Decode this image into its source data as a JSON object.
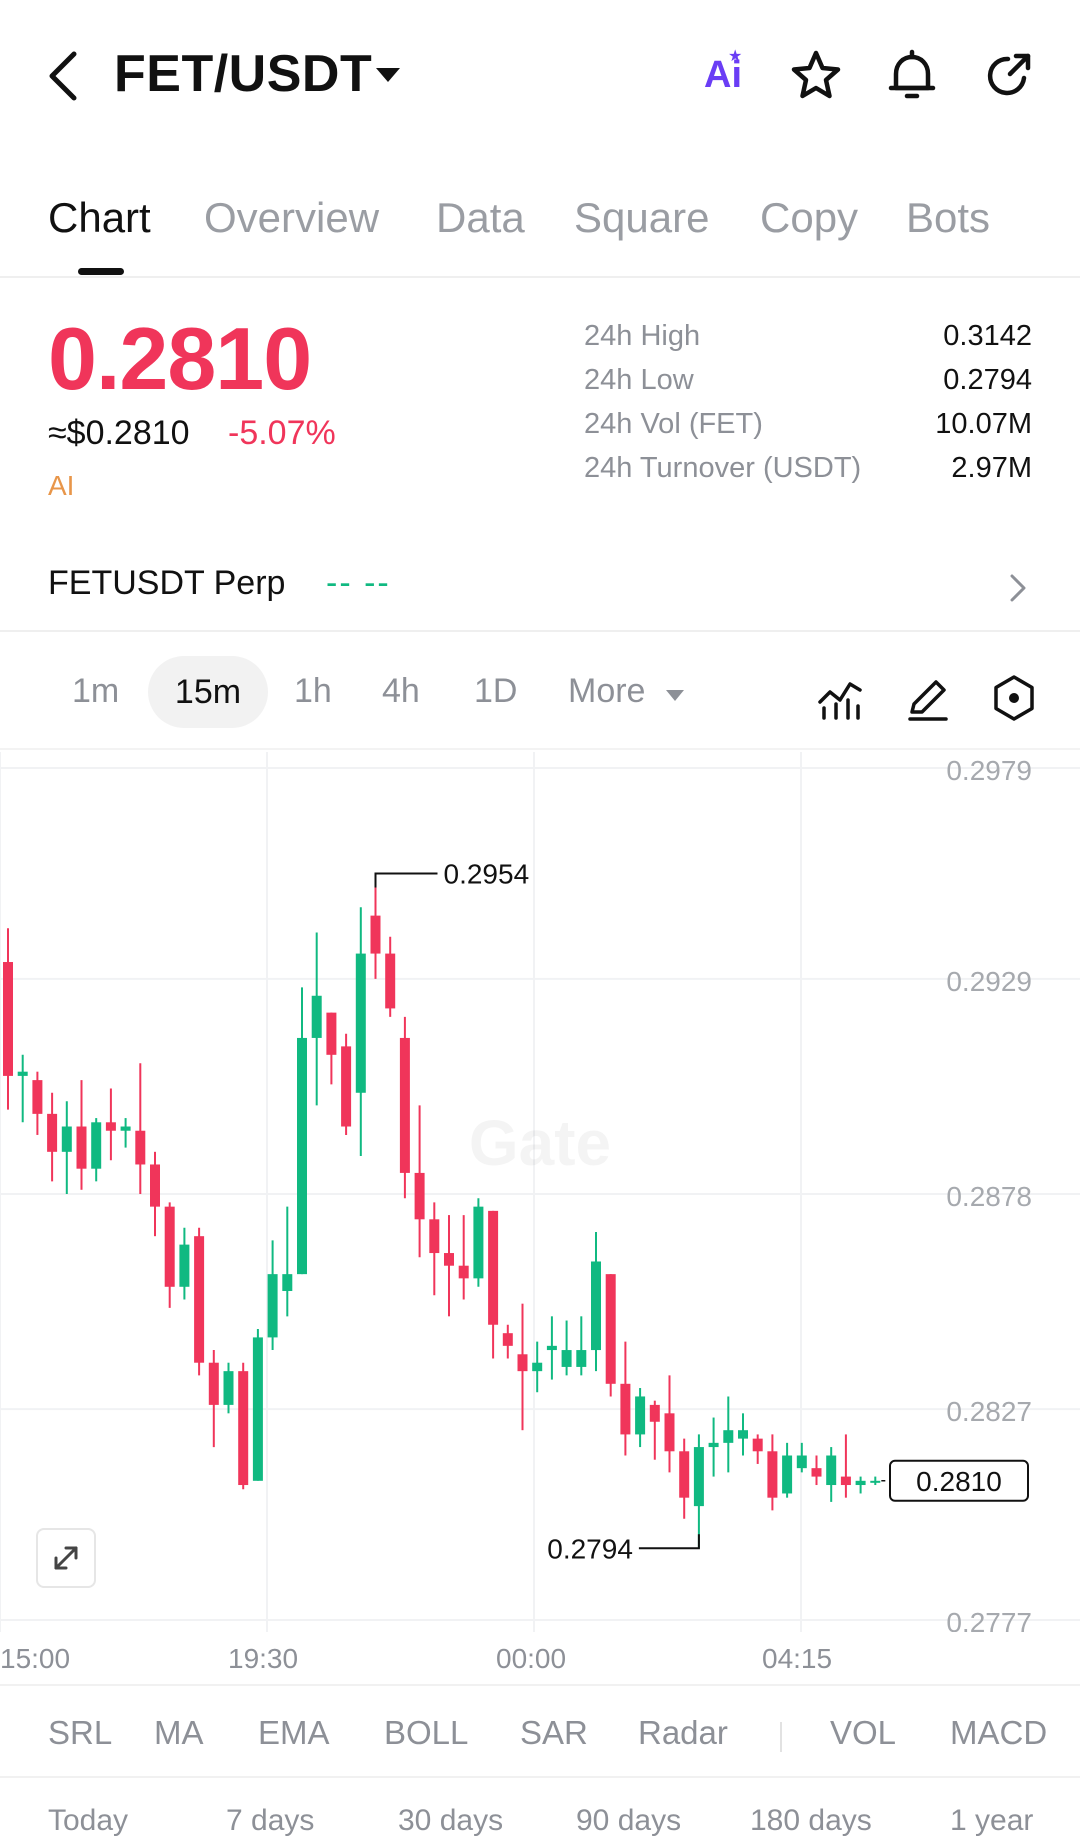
{
  "header": {
    "title": "FET/USDT",
    "ai_label": "Ai"
  },
  "tabs": [
    {
      "label": "Chart",
      "active": true
    },
    {
      "label": "Overview"
    },
    {
      "label": "Data"
    },
    {
      "label": "Square"
    },
    {
      "label": "Copy"
    },
    {
      "label": "Bots"
    }
  ],
  "ticker": {
    "price": "0.2810",
    "usd_price": "≈$0.2810",
    "change": "-5.07%",
    "ai_tag": "AI",
    "stats": [
      {
        "label": "24h  High",
        "value": "0.3142"
      },
      {
        "label": "24h  Low",
        "value": "0.2794"
      },
      {
        "label": "24h  Vol (FET)",
        "value": "10.07M"
      },
      {
        "label": "24h  Turnover (USDT)",
        "value": "2.97M"
      }
    ]
  },
  "perp": {
    "name": "FETUSDT Perp",
    "value": "--  --"
  },
  "intervals": [
    "1m",
    "15m",
    "1h",
    "4h",
    "1D",
    "More"
  ],
  "active_interval": "15m",
  "chart": {
    "y_ticks": [
      "0.2979",
      "0.2929",
      "0.2878",
      "0.2827",
      "0.2777"
    ],
    "x_ticks": [
      "15:00",
      "19:30",
      "00:00",
      "04:15"
    ],
    "high_label": "0.2954",
    "low_label": "0.2794",
    "last_price_label": "0.2810",
    "watermark": "Gate",
    "colors": {
      "up": "#10b981",
      "down": "#f0355a"
    }
  },
  "chart_data": {
    "type": "candlestick",
    "interval": "15m",
    "ylim": [
      0.2777,
      0.2979
    ],
    "y_ticks": [
      0.2979,
      0.2929,
      0.2878,
      0.2827,
      0.2777
    ],
    "x_ticks": [
      "15:00",
      "19:30",
      "00:00",
      "04:15"
    ],
    "high": 0.2954,
    "low": 0.2794,
    "last": 0.281,
    "candles": [
      {
        "o": 0.2933,
        "h": 0.2941,
        "l": 0.2898,
        "c": 0.2906
      },
      {
        "o": 0.2906,
        "h": 0.2911,
        "l": 0.2895,
        "c": 0.2907
      },
      {
        "o": 0.2905,
        "h": 0.2907,
        "l": 0.2892,
        "c": 0.2897
      },
      {
        "o": 0.2897,
        "h": 0.2902,
        "l": 0.2881,
        "c": 0.2888
      },
      {
        "o": 0.2888,
        "h": 0.29,
        "l": 0.2878,
        "c": 0.2894
      },
      {
        "o": 0.2894,
        "h": 0.2905,
        "l": 0.2879,
        "c": 0.2884
      },
      {
        "o": 0.2884,
        "h": 0.2896,
        "l": 0.2881,
        "c": 0.2895
      },
      {
        "o": 0.2895,
        "h": 0.2903,
        "l": 0.2886,
        "c": 0.2893
      },
      {
        "o": 0.2893,
        "h": 0.2896,
        "l": 0.2889,
        "c": 0.2894
      },
      {
        "o": 0.2893,
        "h": 0.2909,
        "l": 0.2878,
        "c": 0.2885
      },
      {
        "o": 0.2885,
        "h": 0.2888,
        "l": 0.2868,
        "c": 0.2875
      },
      {
        "o": 0.2875,
        "h": 0.2876,
        "l": 0.2851,
        "c": 0.2856
      },
      {
        "o": 0.2856,
        "h": 0.287,
        "l": 0.2853,
        "c": 0.2866
      },
      {
        "o": 0.2868,
        "h": 0.287,
        "l": 0.2835,
        "c": 0.2838
      },
      {
        "o": 0.2838,
        "h": 0.2841,
        "l": 0.2818,
        "c": 0.2828
      },
      {
        "o": 0.2828,
        "h": 0.2838,
        "l": 0.2826,
        "c": 0.2836
      },
      {
        "o": 0.2836,
        "h": 0.2838,
        "l": 0.2808,
        "c": 0.2809
      },
      {
        "o": 0.281,
        "h": 0.2846,
        "l": 0.281,
        "c": 0.2844
      },
      {
        "o": 0.2844,
        "h": 0.2867,
        "l": 0.2841,
        "c": 0.2859
      },
      {
        "o": 0.2855,
        "h": 0.2875,
        "l": 0.2849,
        "c": 0.2859
      },
      {
        "o": 0.2859,
        "h": 0.2927,
        "l": 0.2859,
        "c": 0.2915
      },
      {
        "o": 0.2915,
        "h": 0.294,
        "l": 0.2899,
        "c": 0.2925
      },
      {
        "o": 0.2921,
        "h": 0.2921,
        "l": 0.2904,
        "c": 0.2911
      },
      {
        "o": 0.2913,
        "h": 0.2916,
        "l": 0.2892,
        "c": 0.2894
      },
      {
        "o": 0.2902,
        "h": 0.2946,
        "l": 0.2887,
        "c": 0.2935
      },
      {
        "o": 0.2944,
        "h": 0.2954,
        "l": 0.2929,
        "c": 0.2935
      },
      {
        "o": 0.2935,
        "h": 0.2939,
        "l": 0.292,
        "c": 0.2922
      },
      {
        "o": 0.2915,
        "h": 0.292,
        "l": 0.2877,
        "c": 0.2883
      },
      {
        "o": 0.2883,
        "h": 0.2899,
        "l": 0.2863,
        "c": 0.2872
      },
      {
        "o": 0.2872,
        "h": 0.2876,
        "l": 0.2854,
        "c": 0.2864
      },
      {
        "o": 0.2864,
        "h": 0.2873,
        "l": 0.2849,
        "c": 0.2861
      },
      {
        "o": 0.2861,
        "h": 0.2873,
        "l": 0.2853,
        "c": 0.2858
      },
      {
        "o": 0.2858,
        "h": 0.2877,
        "l": 0.2856,
        "c": 0.2875
      },
      {
        "o": 0.2874,
        "h": 0.2874,
        "l": 0.2839,
        "c": 0.2847
      },
      {
        "o": 0.2845,
        "h": 0.2847,
        "l": 0.2839,
        "c": 0.2842
      },
      {
        "o": 0.284,
        "h": 0.2852,
        "l": 0.2822,
        "c": 0.2836
      },
      {
        "o": 0.2836,
        "h": 0.2843,
        "l": 0.2831,
        "c": 0.2838
      },
      {
        "o": 0.2841,
        "h": 0.2849,
        "l": 0.2834,
        "c": 0.2842
      },
      {
        "o": 0.2837,
        "h": 0.2848,
        "l": 0.2835,
        "c": 0.2841
      },
      {
        "o": 0.2837,
        "h": 0.2849,
        "l": 0.2835,
        "c": 0.2841
      },
      {
        "o": 0.2841,
        "h": 0.2869,
        "l": 0.2836,
        "c": 0.2862
      },
      {
        "o": 0.2859,
        "h": 0.2859,
        "l": 0.283,
        "c": 0.2833
      },
      {
        "o": 0.2833,
        "h": 0.2843,
        "l": 0.2816,
        "c": 0.2821
      },
      {
        "o": 0.2821,
        "h": 0.2832,
        "l": 0.2818,
        "c": 0.283
      },
      {
        "o": 0.2828,
        "h": 0.2829,
        "l": 0.2815,
        "c": 0.2824
      },
      {
        "o": 0.2826,
        "h": 0.2835,
        "l": 0.2812,
        "c": 0.2817
      },
      {
        "o": 0.2817,
        "h": 0.282,
        "l": 0.2801,
        "c": 0.2806
      },
      {
        "o": 0.2804,
        "h": 0.2821,
        "l": 0.2794,
        "c": 0.2818
      },
      {
        "o": 0.2818,
        "h": 0.2825,
        "l": 0.2811,
        "c": 0.2819
      },
      {
        "o": 0.2819,
        "h": 0.283,
        "l": 0.2812,
        "c": 0.2822
      },
      {
        "o": 0.282,
        "h": 0.2826,
        "l": 0.2816,
        "c": 0.2822
      },
      {
        "o": 0.282,
        "h": 0.2821,
        "l": 0.2814,
        "c": 0.2817
      },
      {
        "o": 0.2817,
        "h": 0.2821,
        "l": 0.2803,
        "c": 0.2806
      },
      {
        "o": 0.2807,
        "h": 0.2819,
        "l": 0.2806,
        "c": 0.2816
      },
      {
        "o": 0.2813,
        "h": 0.2819,
        "l": 0.2812,
        "c": 0.2816
      },
      {
        "o": 0.2813,
        "h": 0.2816,
        "l": 0.2809,
        "c": 0.2811
      },
      {
        "o": 0.2809,
        "h": 0.2818,
        "l": 0.2805,
        "c": 0.2816
      },
      {
        "o": 0.2811,
        "h": 0.2821,
        "l": 0.2806,
        "c": 0.2809
      },
      {
        "o": 0.2809,
        "h": 0.2811,
        "l": 0.2807,
        "c": 0.281
      },
      {
        "o": 0.281,
        "h": 0.2811,
        "l": 0.2809,
        "c": 0.281
      }
    ]
  },
  "indicators": [
    "SRL",
    "MA",
    "EMA",
    "BOLL",
    "SAR",
    "Radar",
    "VOL",
    "MACD"
  ],
  "periods": [
    "Today",
    "7 days",
    "30 days",
    "90 days",
    "180 days",
    "1 year"
  ]
}
